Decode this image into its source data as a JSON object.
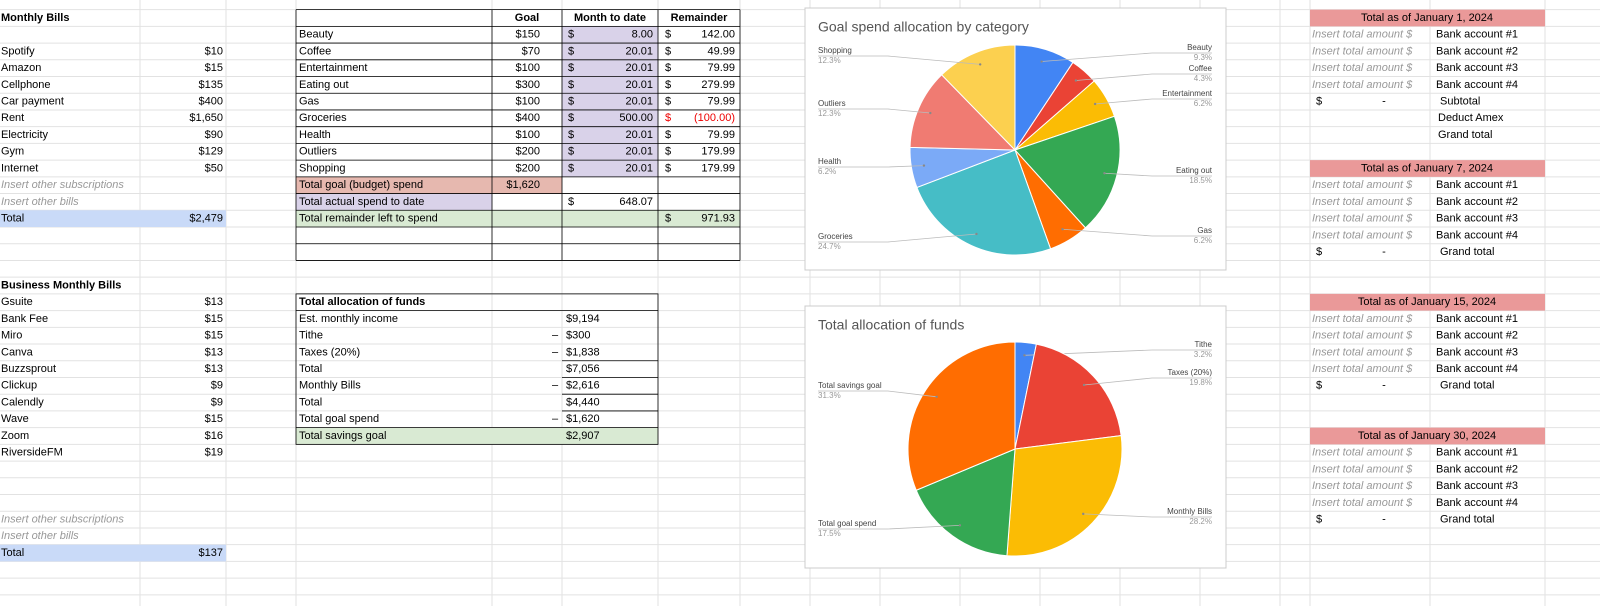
{
  "monthly_bills": {
    "title": "Monthly Bills",
    "items": [
      {
        "name": "Spotify",
        "amount": "$10"
      },
      {
        "name": "Amazon",
        "amount": "$15"
      },
      {
        "name": "Cellphone",
        "amount": "$135"
      },
      {
        "name": "Car payment",
        "amount": "$400"
      },
      {
        "name": "Rent",
        "amount": "$1,650"
      },
      {
        "name": "Electricity",
        "amount": "$90"
      },
      {
        "name": "Gym",
        "amount": "$129"
      },
      {
        "name": "Internet",
        "amount": "$50"
      }
    ],
    "placeholders": [
      "Insert other subscriptions",
      "Insert other bills"
    ],
    "total": {
      "label": "Total",
      "amount": "$2,479"
    }
  },
  "business_bills": {
    "title": "Business Monthly Bills",
    "items": [
      {
        "name": "Gsuite",
        "amount": "$13"
      },
      {
        "name": "Bank Fee",
        "amount": "$15"
      },
      {
        "name": "Miro",
        "amount": "$15"
      },
      {
        "name": "Canva",
        "amount": "$13"
      },
      {
        "name": "Buzzsprout",
        "amount": "$13"
      },
      {
        "name": "Clickup",
        "amount": "$9"
      },
      {
        "name": "Calendly",
        "amount": "$9"
      },
      {
        "name": "Wave",
        "amount": "$15"
      },
      {
        "name": "Zoom",
        "amount": "$16"
      },
      {
        "name": "RiversideFM",
        "amount": "$19"
      }
    ],
    "placeholders": [
      "Insert other subscriptions",
      "Insert other bills"
    ],
    "total": {
      "label": "Total",
      "amount": "$137"
    }
  },
  "budget": {
    "headers": [
      "Goal",
      "Month to date",
      "Remainder"
    ],
    "rows": [
      {
        "label": "Beauty",
        "goal": "$150",
        "mtd_cur": "$",
        "mtd": "8.00",
        "rem_cur": "$",
        "rem": "142.00"
      },
      {
        "label": "Coffee",
        "goal": "$70",
        "mtd_cur": "$",
        "mtd": "20.01",
        "rem_cur": "$",
        "rem": "49.99"
      },
      {
        "label": "Entertainment",
        "goal": "$100",
        "mtd_cur": "$",
        "mtd": "20.01",
        "rem_cur": "$",
        "rem": "79.99"
      },
      {
        "label": "Eating out",
        "goal": "$300",
        "mtd_cur": "$",
        "mtd": "20.01",
        "rem_cur": "$",
        "rem": "279.99"
      },
      {
        "label": "Gas",
        "goal": "$100",
        "mtd_cur": "$",
        "mtd": "20.01",
        "rem_cur": "$",
        "rem": "79.99"
      },
      {
        "label": "Groceries",
        "goal": "$400",
        "mtd_cur": "$",
        "mtd": "500.00",
        "rem_cur": "$",
        "rem": "(100.00)"
      },
      {
        "label": "Health",
        "goal": "$100",
        "mtd_cur": "$",
        "mtd": "20.01",
        "rem_cur": "$",
        "rem": "79.99"
      },
      {
        "label": "Outliers",
        "goal": "$200",
        "mtd_cur": "$",
        "mtd": "20.01",
        "rem_cur": "$",
        "rem": "179.99"
      },
      {
        "label": "Shopping",
        "goal": "$200",
        "mtd_cur": "$",
        "mtd": "20.01",
        "rem_cur": "$",
        "rem": "179.99"
      }
    ],
    "summary": [
      {
        "label": "Total goal (budget) spend",
        "goal": "$1,620"
      },
      {
        "label": "Total actual spend to date",
        "mtd_cur": "$",
        "mtd": "648.07"
      },
      {
        "label": "Total remainder left to spend",
        "rem_cur": "$",
        "rem": "971.93"
      }
    ]
  },
  "allocation": {
    "title": "Total allocation of funds",
    "rows": [
      {
        "label": "Est. monthly income",
        "amount": "$9,194"
      },
      {
        "label": "Tithe",
        "op": "–",
        "amount": "$300"
      },
      {
        "label": "Taxes (20%)",
        "op": "–",
        "amount": "$1,838"
      },
      {
        "label": "Total",
        "amount": "$7,056"
      },
      {
        "label": "Monthly Bills",
        "op": "–",
        "amount": "$2,616"
      },
      {
        "label": "Total",
        "amount": "$4,440"
      },
      {
        "label": "Total goal spend",
        "op": "–",
        "amount": "$1,620"
      },
      {
        "label": "Total savings goal",
        "amount": "$2,907"
      }
    ]
  },
  "totals": [
    {
      "title": "Total as of January 1, 2024",
      "accounts": [
        {
          "amount": "Insert total amount $",
          "account": "Bank account #1"
        },
        {
          "amount": "Insert total amount $",
          "account": "Bank account #2"
        },
        {
          "amount": "Insert total amount $",
          "account": "Bank account #3"
        },
        {
          "amount": "Insert total amount $",
          "account": "Bank account #4"
        }
      ],
      "footer": [
        {
          "currency": "$",
          "amount": "-",
          "label": "Subtotal"
        },
        {
          "label": "Deduct Amex"
        },
        {
          "label": "Grand total"
        }
      ]
    },
    {
      "title": "Total as of January 7, 2024",
      "accounts": [
        {
          "amount": "Insert total amount $",
          "account": "Bank account #1"
        },
        {
          "amount": "Insert total amount $",
          "account": "Bank account #2"
        },
        {
          "amount": "Insert total amount $",
          "account": "Bank account #3"
        },
        {
          "amount": "Insert total amount $",
          "account": "Bank account #4"
        }
      ],
      "footer": [
        {
          "currency": "$",
          "amount": "-",
          "label": "Grand total"
        }
      ]
    },
    {
      "title": "Total as of January 15, 2024",
      "accounts": [
        {
          "amount": "Insert total amount $",
          "account": "Bank account #1"
        },
        {
          "amount": "Insert total amount $",
          "account": "Bank account #2"
        },
        {
          "amount": "Insert total amount $",
          "account": "Bank account #3"
        },
        {
          "amount": "Insert total amount $",
          "account": "Bank account #4"
        }
      ],
      "footer": [
        {
          "currency": "$",
          "amount": "-",
          "label": "Grand total"
        }
      ]
    },
    {
      "title": "Total as of January 30, 2024",
      "accounts": [
        {
          "amount": "Insert total amount $",
          "account": "Bank account #1"
        },
        {
          "amount": "Insert total amount $",
          "account": "Bank account #2"
        },
        {
          "amount": "Insert total amount $",
          "account": "Bank account #3"
        },
        {
          "amount": "Insert total amount $",
          "account": "Bank account #4"
        }
      ],
      "footer": [
        {
          "currency": "$",
          "amount": "-",
          "label": "Grand total"
        }
      ]
    }
  ],
  "chart_data": [
    {
      "type": "pie",
      "title": "Goal spend allocation by category",
      "categories": [
        "Beauty",
        "Coffee",
        "Entertainment",
        "Eating out",
        "Gas",
        "Groceries",
        "Health",
        "Outliers",
        "Shopping"
      ],
      "values": [
        9.3,
        4.3,
        6.2,
        18.5,
        6.2,
        24.7,
        6.2,
        12.3,
        12.3
      ],
      "value_labels": [
        "9.3%",
        "4.3%",
        "6.2%",
        "18.5%",
        "6.2%",
        "24.7%",
        "6.2%",
        "12.3%",
        "12.3%"
      ],
      "colors": [
        "#4285f4",
        "#ea4335",
        "#fbbc04",
        "#34a853",
        "#ff6d01",
        "#46bdc6",
        "#7baaf7",
        "#f07b72",
        "#fcd04f"
      ]
    },
    {
      "type": "pie",
      "title": "Total allocation of funds",
      "categories": [
        "Tithe",
        "Taxes (20%)",
        "Monthly Bills",
        "Total goal spend",
        "Total savings goal"
      ],
      "values": [
        3.2,
        19.8,
        28.2,
        17.5,
        31.3
      ],
      "value_labels": [
        "3.2%",
        "19.8%",
        "28.2%",
        "17.5%",
        "31.3%"
      ],
      "colors": [
        "#4285f4",
        "#ea4335",
        "#fbbc04",
        "#34a853",
        "#ff6d01"
      ]
    }
  ]
}
